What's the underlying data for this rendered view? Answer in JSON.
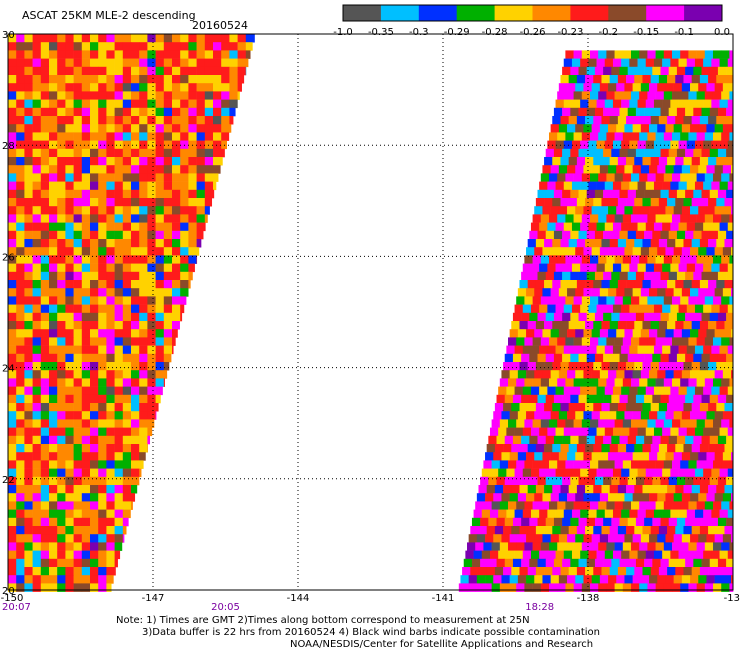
{
  "header": {
    "title": "ASCAT 25KM MLE-2 descending",
    "date": "20160524"
  },
  "colorbar": {
    "labels": [
      "-1.0",
      "-0.35",
      "-0.3",
      "-0.29",
      "-0.28",
      "-0.26",
      "-0.23",
      "-0.2",
      "-0.15",
      "-0.1",
      "0.0"
    ],
    "colors": [
      "#555555",
      "#00bfff",
      "#0030ff",
      "#00b000",
      "#ffd200",
      "#ff8800",
      "#ff1b1b",
      "#8a4a2a",
      "#ff00ff",
      "#7a00b0"
    ]
  },
  "chart_data": {
    "type": "heatmap",
    "x_ticks": [
      "-150",
      "-147",
      "-144",
      "-141",
      "-138",
      "-13"
    ],
    "y_ticks": [
      "30",
      "28",
      "26",
      "24",
      "22",
      "20"
    ],
    "xlim": [
      -150,
      -135
    ],
    "ylim": [
      20,
      30
    ],
    "grid": true,
    "time_labels": [
      {
        "text": "20:07",
        "lon": -150
      },
      {
        "text": "20:05",
        "lon": -145.5
      },
      {
        "text": "18:28",
        "lon": -139
      }
    ],
    "swaths": [
      {
        "name": "west",
        "lon_left": -150,
        "lon_right_top": -144.9,
        "lon_right_bottom": -147.9,
        "dominant": "red-orange-yellow"
      },
      {
        "name": "east",
        "lon_left_top": -138.4,
        "lon_left_bottom": -140.7,
        "lon_right": -135,
        "dominant": "mixed"
      }
    ]
  },
  "footer": {
    "note_line1": "Note: 1) Times are GMT 2)Times along bottom correspond to measurement at 25N",
    "note_line2": "3)Data buffer is 22 hrs from 20160524 4) Black wind barbs indicate possible contamination",
    "note_line3": "NOAA/NESDIS/Center for Satellite Applications and Research"
  }
}
